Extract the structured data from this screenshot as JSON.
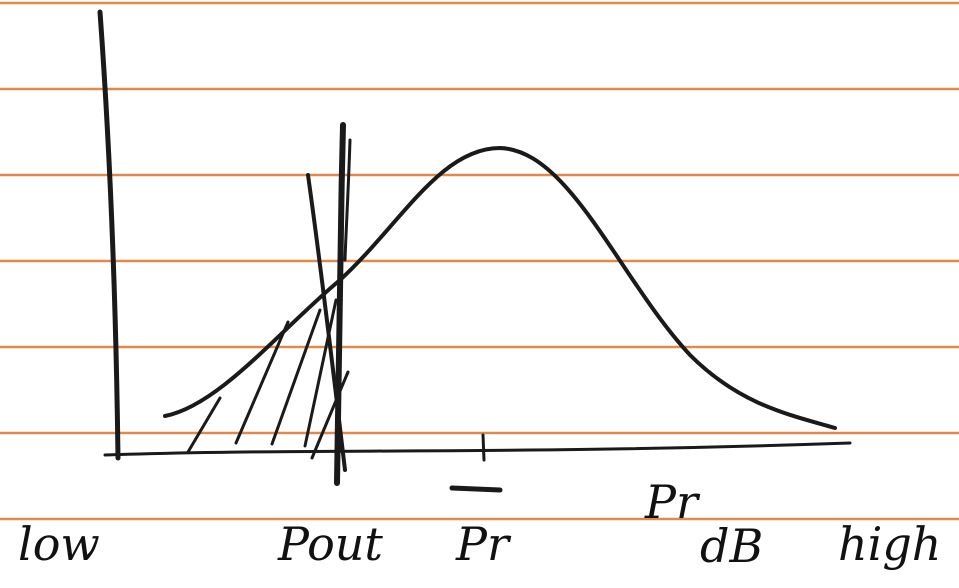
{
  "labels": {
    "low": "low",
    "pout": "Pout",
    "pr_mean": "Pr",
    "pr": "Pr",
    "unit": "dB",
    "high": "high"
  }
}
